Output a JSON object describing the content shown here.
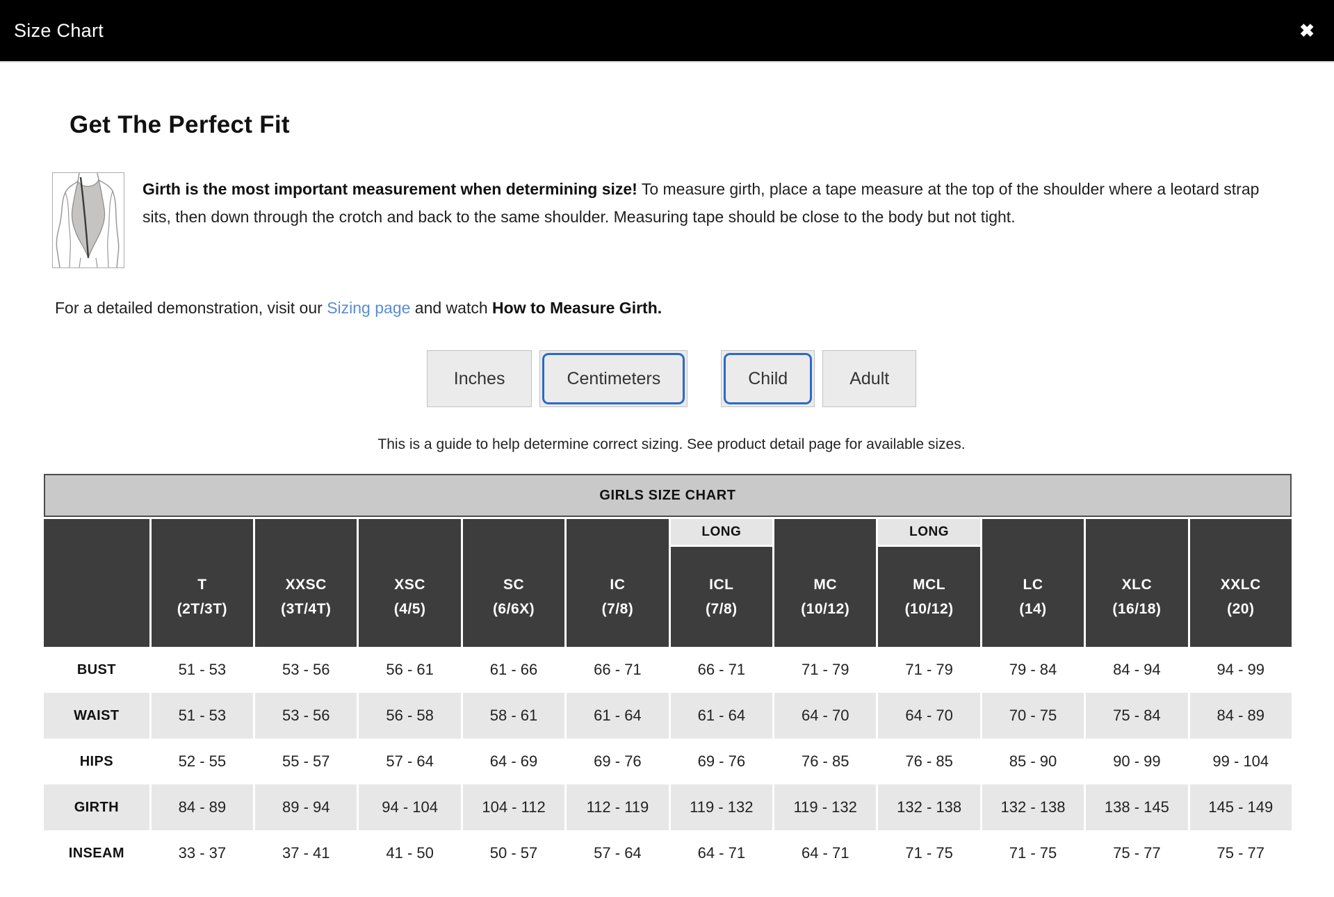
{
  "header": {
    "title": "Size Chart",
    "close_icon": "✖"
  },
  "intro": {
    "heading": "Get The Perfect Fit",
    "bold_lead": "Girth is the most important measurement when determining size!",
    "body_rest": " To measure girth, place a tape measure at the top of the shoulder where a leotard strap sits, then down through the crotch and back to the same shoulder. Measuring tape should be close to the body but not tight.",
    "demo_prefix": "For a detailed demonstration, visit our ",
    "demo_link": "Sizing page",
    "demo_middle": " and watch ",
    "demo_bold": "How to Measure Girth.",
    "illustration": "leotard-girth-diagram"
  },
  "toggles": {
    "unit_buttons": [
      {
        "label": "Inches",
        "selected": false
      },
      {
        "label": "Centimeters",
        "selected": true
      }
    ],
    "age_buttons": [
      {
        "label": "Child",
        "selected": true
      },
      {
        "label": "Adult",
        "selected": false
      }
    ]
  },
  "note": "This is a guide to help determine correct sizing. See product detail page for available sizes.",
  "size_chart": {
    "title": "GIRLS SIZE CHART",
    "long_label": "LONG",
    "columns": [
      {
        "code": "T",
        "range": "(2T/3T)",
        "long": false
      },
      {
        "code": "XXSC",
        "range": "(3T/4T)",
        "long": false
      },
      {
        "code": "XSC",
        "range": "(4/5)",
        "long": false
      },
      {
        "code": "SC",
        "range": "(6/6X)",
        "long": false
      },
      {
        "code": "IC",
        "range": "(7/8)",
        "long": false
      },
      {
        "code": "ICL",
        "range": "(7/8)",
        "long": true
      },
      {
        "code": "MC",
        "range": "(10/12)",
        "long": false
      },
      {
        "code": "MCL",
        "range": "(10/12)",
        "long": true
      },
      {
        "code": "LC",
        "range": "(14)",
        "long": false
      },
      {
        "code": "XLC",
        "range": "(16/18)",
        "long": false
      },
      {
        "code": "XXLC",
        "range": "(20)",
        "long": false
      }
    ],
    "rows": [
      {
        "label": "BUST",
        "values": [
          "51 - 53",
          "53 - 56",
          "56 - 61",
          "61 - 66",
          "66 - 71",
          "66 - 71",
          "71 - 79",
          "71 - 79",
          "79 - 84",
          "84 - 94",
          "94 - 99"
        ]
      },
      {
        "label": "WAIST",
        "values": [
          "51 - 53",
          "53 - 56",
          "56 - 58",
          "58 - 61",
          "61 - 64",
          "61 - 64",
          "64 - 70",
          "64 - 70",
          "70 - 75",
          "75 - 84",
          "84 - 89"
        ]
      },
      {
        "label": "HIPS",
        "values": [
          "52 - 55",
          "55 - 57",
          "57 - 64",
          "64 - 69",
          "69 - 76",
          "69 - 76",
          "76 - 85",
          "76 - 85",
          "85 - 90",
          "90 - 99",
          "99 - 104"
        ]
      },
      {
        "label": "GIRTH",
        "values": [
          "84 - 89",
          "89 - 94",
          "94 - 104",
          "104 - 112",
          "112 - 119",
          "119 - 132",
          "119 - 132",
          "132 - 138",
          "132 - 138",
          "138 - 145",
          "145 - 149"
        ]
      },
      {
        "label": "INSEAM",
        "values": [
          "33 - 37",
          "37 - 41",
          "41 - 50",
          "50 - 57",
          "57 - 64",
          "64 - 71",
          "64 - 71",
          "71 - 75",
          "71 - 75",
          "75 - 77",
          "75 - 77"
        ]
      }
    ]
  },
  "colors": {
    "header_bar": "#000000",
    "accent_blue": "#2c69c8",
    "link_blue": "#5a8cd2",
    "table_header_dark": "#3d3d3d",
    "caption_gray": "#c9c9c9",
    "stripe_gray": "#e7e7e7",
    "long_strip_gray": "#e5e5e5"
  }
}
